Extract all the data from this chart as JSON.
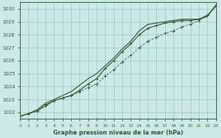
{
  "bg_color": "#cce8e8",
  "grid_color": "#99ccbb",
  "line_color": "#2d5a2d",
  "title": "Graphe pression niveau de la mer (hPa)",
  "xlim": [
    0,
    23
  ],
  "ylim": [
    1021.5,
    1030.5
  ],
  "yticks": [
    1022,
    1023,
    1024,
    1025,
    1026,
    1027,
    1028,
    1029,
    1030
  ],
  "xticks": [
    0,
    1,
    2,
    3,
    4,
    5,
    6,
    7,
    8,
    9,
    10,
    11,
    12,
    13,
    14,
    15,
    16,
    17,
    18,
    19,
    20,
    21,
    22,
    23
  ],
  "series1_x": [
    0,
    1,
    2,
    3,
    4,
    5,
    6,
    7,
    8,
    9,
    10,
    11,
    12,
    13,
    14,
    15,
    16,
    17,
    18,
    19,
    20,
    21,
    22,
    23
  ],
  "series1_y": [
    1021.7,
    1021.9,
    1022.1,
    1022.6,
    1022.9,
    1023.1,
    1023.3,
    1023.6,
    1023.9,
    1024.2,
    1024.8,
    1025.3,
    1025.9,
    1026.4,
    1027.0,
    1027.5,
    1027.8,
    1028.1,
    1028.3,
    1028.6,
    1028.8,
    1029.1,
    1029.5,
    1030.2
  ],
  "series2_x": [
    0,
    1,
    2,
    3,
    4,
    5,
    6,
    7,
    8,
    9,
    10,
    11,
    12,
    13,
    14,
    15,
    16,
    17,
    18,
    19,
    20,
    21,
    22,
    23
  ],
  "series2_y": [
    1021.7,
    1021.9,
    1022.2,
    1022.7,
    1023.0,
    1023.3,
    1023.6,
    1024.1,
    1024.6,
    1025.0,
    1025.6,
    1026.2,
    1026.9,
    1027.5,
    1028.3,
    1028.8,
    1028.9,
    1029.0,
    1029.1,
    1029.2,
    1029.2,
    1029.2,
    1029.4,
    1030.3
  ],
  "series3_x": [
    0,
    1,
    2,
    3,
    4,
    5,
    6,
    7,
    8,
    9,
    10,
    11,
    12,
    13,
    14,
    15,
    16,
    17,
    18,
    19,
    20,
    21,
    22,
    23
  ],
  "series3_y": [
    1021.7,
    1021.9,
    1022.1,
    1022.5,
    1022.9,
    1023.1,
    1023.3,
    1023.7,
    1024.2,
    1024.6,
    1025.4,
    1026.0,
    1026.7,
    1027.3,
    1028.0,
    1028.5,
    1028.7,
    1028.9,
    1029.0,
    1029.1,
    1029.1,
    1029.2,
    1029.5,
    1030.2
  ],
  "marker_x": [
    0,
    1,
    2,
    3,
    4,
    5,
    6,
    7,
    8,
    9,
    10,
    11,
    12,
    13,
    14,
    15,
    16,
    17,
    18,
    19,
    20,
    21,
    22,
    23
  ],
  "marker_y1": [
    1021.7,
    1021.9,
    1022.1,
    1022.6,
    1022.9,
    1023.1,
    1023.3,
    1023.6,
    1023.9,
    1024.2,
    1024.8,
    1025.3,
    1025.9,
    1026.4,
    1027.0,
    1027.5,
    1027.8,
    1028.1,
    1028.3,
    1028.6,
    1028.8,
    1029.1,
    1029.5,
    1030.2
  ]
}
